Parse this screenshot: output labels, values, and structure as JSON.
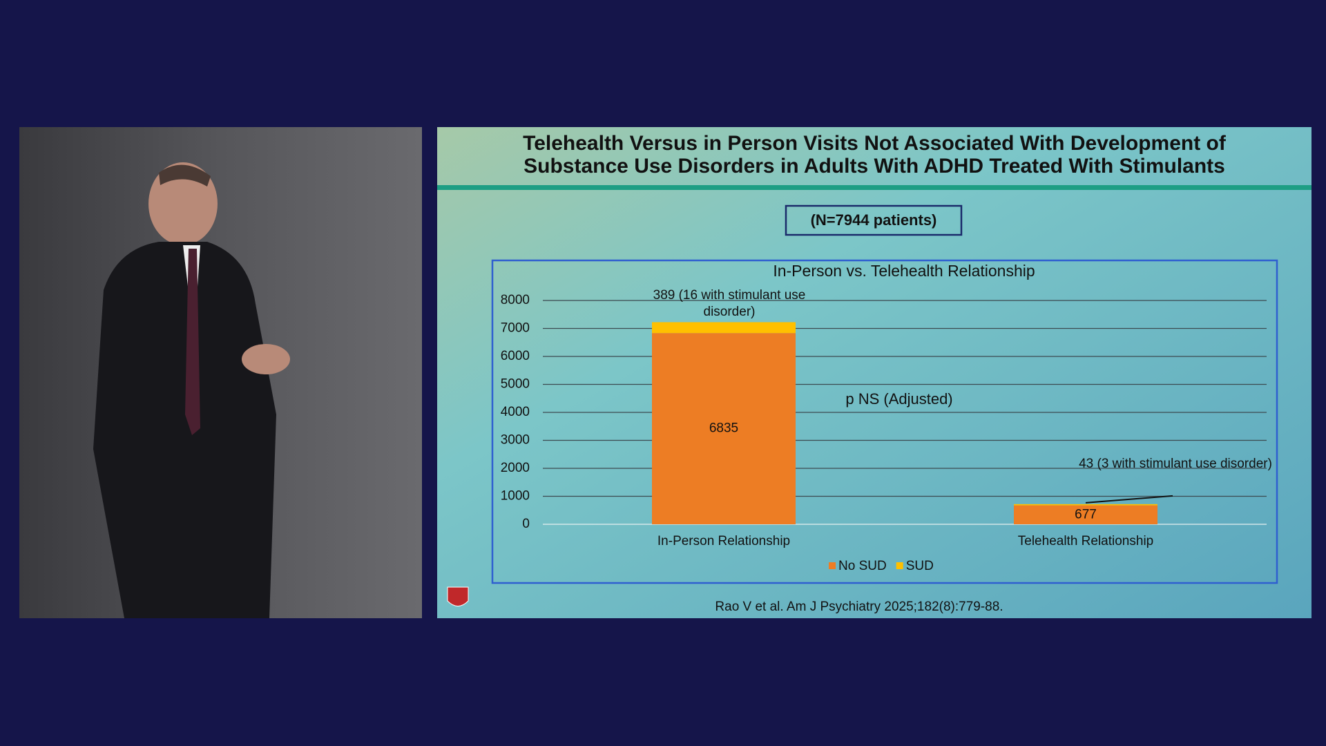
{
  "slide": {
    "title_lines": [
      "Telehealth Versus in Person Visits Not Associated With Development of",
      "Substance Use Disorders in Adults With ADHD Treated With Stimulants"
    ],
    "badge": "(N=7944 patients)",
    "citation": "Rao V et al. Am J Psychiatry 2025;182(8):779-88."
  },
  "chart_data": {
    "type": "bar",
    "stacked": true,
    "title": "In-Person vs. Telehealth Relationship",
    "categories": [
      "In-Person Relationship",
      "Telehealth Relationship"
    ],
    "series": [
      {
        "name": "No SUD",
        "color": "#ed7d24",
        "values": [
          6835,
          677
        ]
      },
      {
        "name": "SUD",
        "color": "#ffc000",
        "values": [
          389,
          43
        ],
        "value_labels": [
          "389 (16 with stimulant use disorder)",
          "43 (3 with stimulant use disorder)"
        ]
      }
    ],
    "annotations": [
      "p NS (Adjusted)"
    ],
    "ylim": [
      0,
      8000
    ],
    "yticks": [
      0,
      1000,
      2000,
      3000,
      4000,
      5000,
      6000,
      7000,
      8000
    ],
    "grid": true,
    "legend": "bottom"
  }
}
